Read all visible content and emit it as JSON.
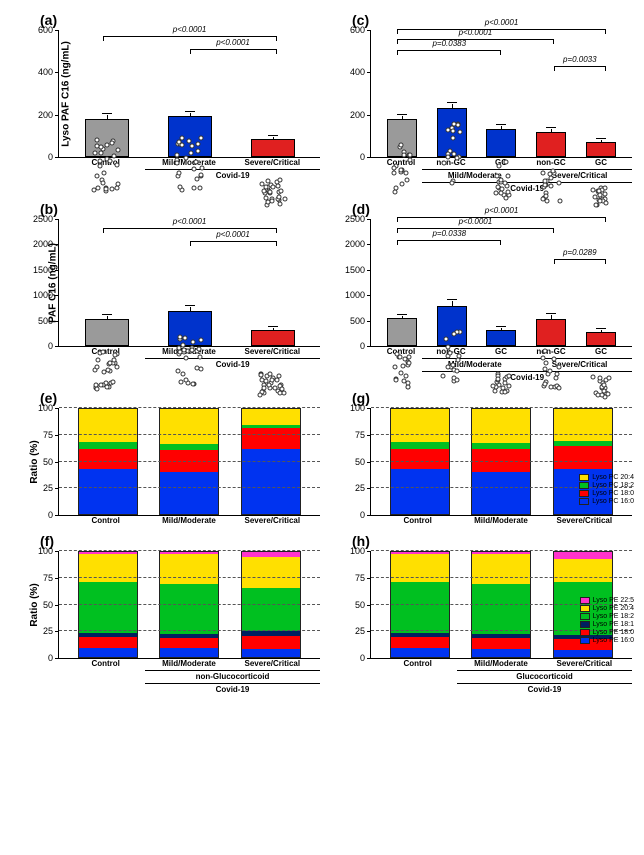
{
  "panels": {
    "a": {
      "label": "(a)",
      "ylabel": "Lyso PAF C16 (ng/mL)",
      "ymax": 600,
      "yticks": [
        0,
        200,
        400,
        600
      ],
      "bars": [
        {
          "label": "Control",
          "color": "#9a9a9a",
          "mean": 180,
          "err": 20
        },
        {
          "label": "Mild/Moderate",
          "color": "#0033cc",
          "mean": 190,
          "err": 22
        },
        {
          "label": "Severe/Critical",
          "color": "#e02020",
          "mean": 85,
          "err": 15
        }
      ],
      "group": "Covid-19",
      "group_from": 1,
      "sigs": [
        {
          "from": 0,
          "to": 2,
          "y": 520,
          "text": "p<0.0001"
        },
        {
          "from": 1,
          "to": 2,
          "y": 460,
          "text": "p<0.0001"
        }
      ]
    },
    "b": {
      "label": "(b)",
      "ylabel": "PAF C16 (ng/mL)",
      "ymax": 2500,
      "yticks": [
        0,
        500,
        1000,
        1500,
        2000,
        2500
      ],
      "bars": [
        {
          "label": "Control",
          "color": "#9a9a9a",
          "mean": 520,
          "err": 80
        },
        {
          "label": "Mild/Moderate",
          "color": "#0033cc",
          "mean": 680,
          "err": 110
        },
        {
          "label": "Severe/Critical",
          "color": "#e02020",
          "mean": 320,
          "err": 60
        }
      ],
      "group": "Covid-19",
      "group_from": 1,
      "sigs": [
        {
          "from": 0,
          "to": 2,
          "y": 2100,
          "text": "p<0.0001"
        },
        {
          "from": 1,
          "to": 2,
          "y": 1850,
          "text": "p<0.0001"
        }
      ]
    },
    "c": {
      "label": "(c)",
      "ylabel": "",
      "ymax": 600,
      "yticks": [
        0,
        200,
        400,
        600
      ],
      "bars": [
        {
          "label": "Control",
          "color": "#9a9a9a",
          "mean": 180,
          "err": 18
        },
        {
          "label": "non-GC",
          "color": "#0033cc",
          "mean": 230,
          "err": 24
        },
        {
          "label": "GC",
          "color": "#0033cc",
          "mean": 130,
          "err": 18
        },
        {
          "label": "non-GC",
          "color": "#e02020",
          "mean": 115,
          "err": 20
        },
        {
          "label": "GC",
          "color": "#e02020",
          "mean": 70,
          "err": 14
        }
      ],
      "groups": [
        {
          "label": "Mild/Moderate",
          "from": 1,
          "to": 2
        },
        {
          "label": "Severe/Critical",
          "from": 3,
          "to": 4
        }
      ],
      "supergroup": "Covid-19",
      "sigs": [
        {
          "from": 0,
          "to": 4,
          "y": 555,
          "text": "p<0.0001"
        },
        {
          "from": 0,
          "to": 3,
          "y": 505,
          "text": "p<0.0001"
        },
        {
          "from": 0,
          "to": 2,
          "y": 455,
          "text": "p=0.0383"
        },
        {
          "from": 3,
          "to": 4,
          "y": 380,
          "text": "p=0.0033"
        }
      ]
    },
    "d": {
      "label": "(d)",
      "ylabel": "",
      "ymax": 2500,
      "yticks": [
        0,
        500,
        1000,
        1500,
        2000,
        2500
      ],
      "bars": [
        {
          "label": "Control",
          "color": "#9a9a9a",
          "mean": 540,
          "err": 70
        },
        {
          "label": "non-GC",
          "color": "#0033cc",
          "mean": 780,
          "err": 120
        },
        {
          "label": "GC",
          "color": "#0033cc",
          "mean": 320,
          "err": 55
        },
        {
          "label": "non-GC",
          "color": "#e02020",
          "mean": 530,
          "err": 90
        },
        {
          "label": "GC",
          "color": "#e02020",
          "mean": 280,
          "err": 45
        }
      ],
      "groups": [
        {
          "label": "Mild/Moderate",
          "from": 1,
          "to": 2
        },
        {
          "label": "Severe/Critical",
          "from": 3,
          "to": 4
        }
      ],
      "supergroup": "Covid-19",
      "sigs": [
        {
          "from": 0,
          "to": 4,
          "y": 2320,
          "text": "p<0.0001"
        },
        {
          "from": 0,
          "to": 3,
          "y": 2100,
          "text": "p<0.0001"
        },
        {
          "from": 0,
          "to": 2,
          "y": 1880,
          "text": "p=0.0338"
        },
        {
          "from": 3,
          "to": 4,
          "y": 1500,
          "text": "p=0.0289"
        }
      ]
    }
  },
  "stacked": {
    "pc_colors": {
      "16:0": "#0033f0",
      "18:0": "#ff0000",
      "18:2": "#00c020",
      "20:4": "#ffe000"
    },
    "pe_colors": {
      "16:0": "#0033f0",
      "18:0": "#ff0000",
      "18:1": "#002060",
      "18:2": "#00c020",
      "20:4": "#ffe000",
      "22:5": "#ff33cc"
    },
    "pc_legend": [
      "Lyso PC 20:4",
      "Lyso PC 18:2",
      "Lyso PC 18:0",
      "Lyso PC 16:0"
    ],
    "pe_legend": [
      "Lyso PE 22:5",
      "Lyso PE 20:4",
      "Lyso PE 18:2",
      "Lyso PE 18:1",
      "Lyso PE 18:0",
      "Lyso PE 16:0"
    ],
    "e": {
      "label": "(e)",
      "ylabel": "Ratio (%)",
      "cats": [
        "Control",
        "Mild/Moderate",
        "Severe/Critical"
      ],
      "rows": [
        {
          "16:0": 43,
          "18:0": 19,
          "18:2": 7,
          "20:4": 31
        },
        {
          "16:0": 40,
          "18:0": 21,
          "18:2": 6,
          "20:4": 33
        },
        {
          "16:0": 62,
          "18:0": 20,
          "18:2": 3,
          "20:4": 15
        }
      ]
    },
    "f": {
      "label": "(f)",
      "ylabel": "Ratio (%)",
      "cats": [
        "Control",
        "Mild/Moderate",
        "Severe/Critical"
      ],
      "group": "non-Glucocorticoid",
      "super": "Covid-19",
      "rows": [
        {
          "16:0": 9,
          "18:0": 10,
          "18:1": 4,
          "18:2": 48,
          "20:4": 27,
          "22:5": 2
        },
        {
          "16:0": 9,
          "18:0": 9,
          "18:1": 4,
          "18:2": 48,
          "20:4": 28,
          "22:5": 2
        },
        {
          "16:0": 8,
          "18:0": 12,
          "18:1": 5,
          "18:2": 41,
          "20:4": 29,
          "22:5": 5
        }
      ]
    },
    "g": {
      "label": "(g)",
      "ylabel": "",
      "cats": [
        "Control",
        "Mild/Moderate",
        "Severe/Critical"
      ],
      "rows": [
        {
          "16:0": 43,
          "18:0": 19,
          "18:2": 7,
          "20:4": 31
        },
        {
          "16:0": 40,
          "18:0": 22,
          "18:2": 6,
          "20:4": 32
        },
        {
          "16:0": 43,
          "18:0": 22,
          "18:2": 5,
          "20:4": 30
        }
      ]
    },
    "h": {
      "label": "(h)",
      "ylabel": "",
      "cats": [
        "Control",
        "Mild/Moderate",
        "Severe/Critical"
      ],
      "group": "Glucocorticoid",
      "super": "Covid-19",
      "rows": [
        {
          "16:0": 9,
          "18:0": 10,
          "18:1": 4,
          "18:2": 48,
          "20:4": 27,
          "22:5": 2
        },
        {
          "16:0": 8,
          "18:0": 10,
          "18:1": 4,
          "18:2": 48,
          "20:4": 28,
          "22:5": 2
        },
        {
          "16:0": 7,
          "18:0": 10,
          "18:1": 4,
          "18:2": 50,
          "20:4": 22,
          "22:5": 7
        }
      ]
    }
  }
}
